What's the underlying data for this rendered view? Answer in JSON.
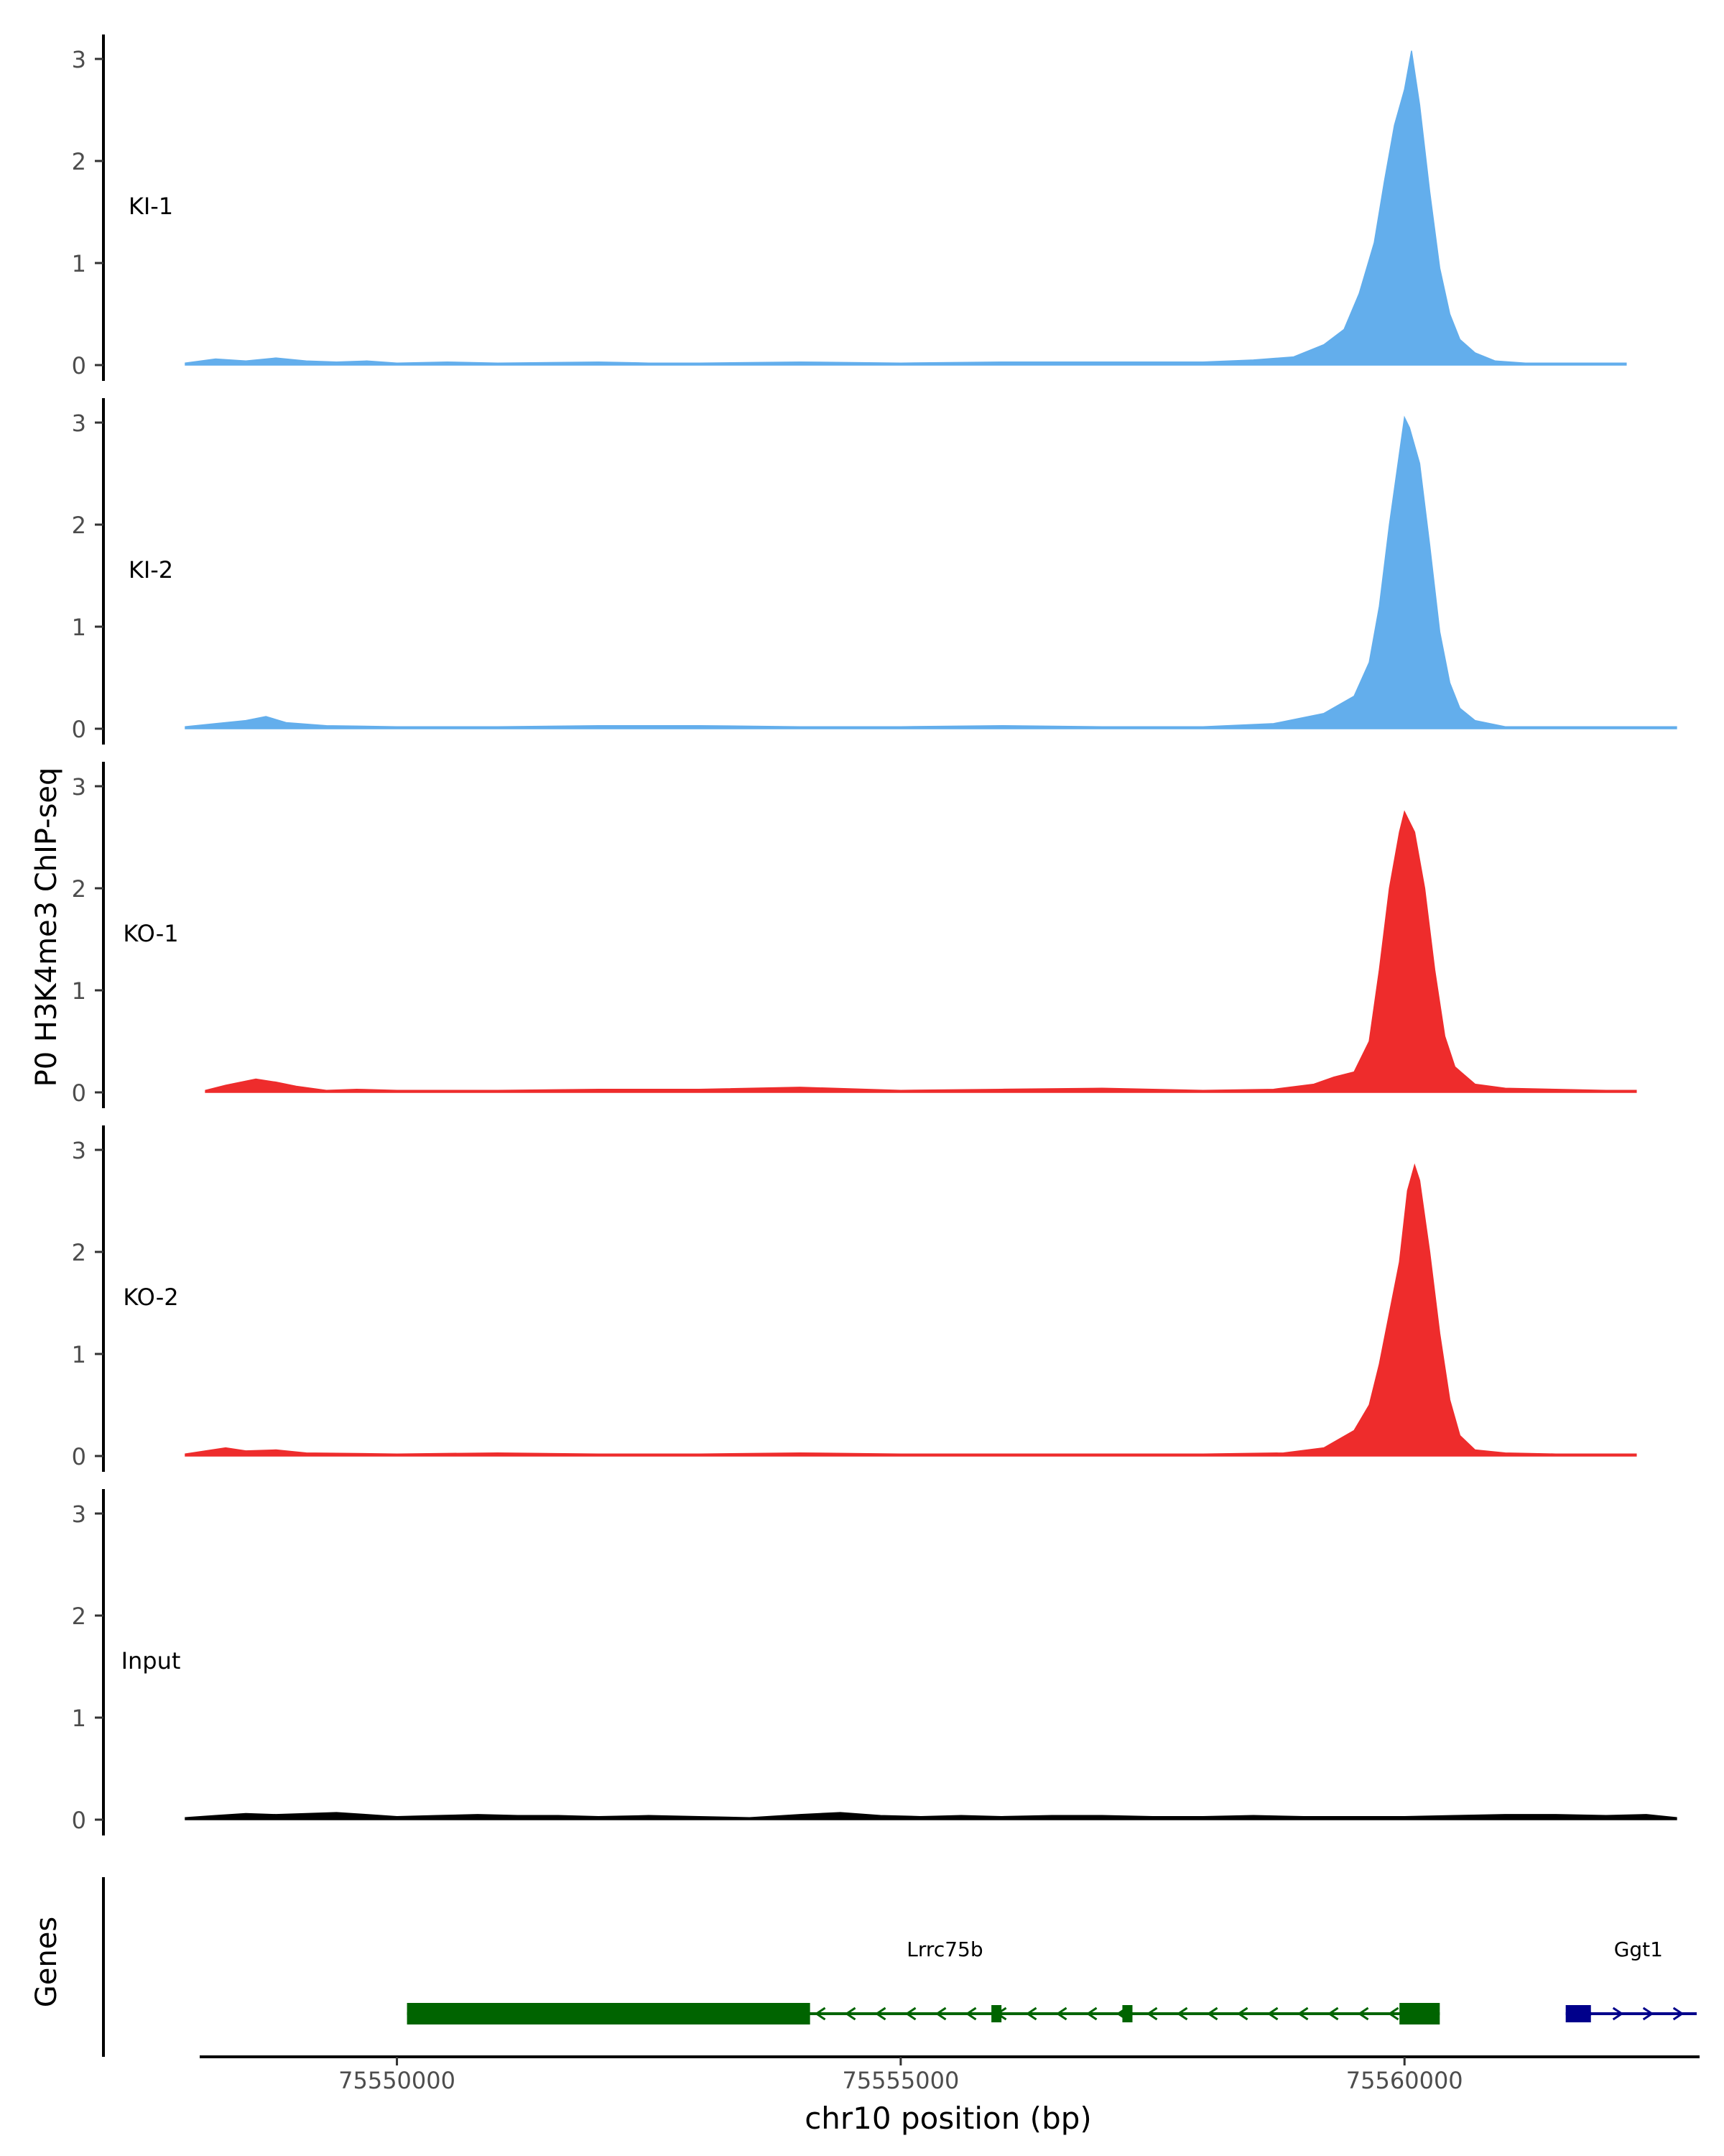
{
  "figure": {
    "ylabel": "P0 H3K4me3 ChIP-seq",
    "xlabel": "chr10 position (bp)",
    "genes_label": "Genes"
  },
  "chart_data": {
    "type": "area",
    "x_unit": "bp",
    "chromosome": "chr10",
    "xlim": [
      75547900,
      75562900
    ],
    "ylim": [
      0,
      3.2
    ],
    "y_ticks": [
      0,
      1,
      2,
      3
    ],
    "x_ticks": [
      75550000,
      75555000,
      75560000
    ],
    "x_tick_labels": [
      "75550000",
      "75555000",
      "75560000"
    ],
    "grid": false,
    "tracks": [
      {
        "label": "KI-1",
        "color": "#63AEEC",
        "baseline": 0.02,
        "points": [
          [
            75547900,
            0.02
          ],
          [
            75548200,
            0.06
          ],
          [
            75548500,
            0.04
          ],
          [
            75548800,
            0.07
          ],
          [
            75549100,
            0.04
          ],
          [
            75549400,
            0.03
          ],
          [
            75549700,
            0.04
          ],
          [
            75550000,
            0.02
          ],
          [
            75550500,
            0.03
          ],
          [
            75551000,
            0.02
          ],
          [
            75552000,
            0.03
          ],
          [
            75552500,
            0.02
          ],
          [
            75553000,
            0.02
          ],
          [
            75554000,
            0.03
          ],
          [
            75555000,
            0.02
          ],
          [
            75556000,
            0.03
          ],
          [
            75557000,
            0.03
          ],
          [
            75558000,
            0.03
          ],
          [
            75558500,
            0.05
          ],
          [
            75558900,
            0.08
          ],
          [
            75559200,
            0.2
          ],
          [
            75559400,
            0.35
          ],
          [
            75559550,
            0.7
          ],
          [
            75559700,
            1.2
          ],
          [
            75559800,
            1.8
          ],
          [
            75559900,
            2.35
          ],
          [
            75560000,
            2.7
          ],
          [
            75560070,
            3.08
          ],
          [
            75560150,
            2.55
          ],
          [
            75560250,
            1.7
          ],
          [
            75560350,
            0.95
          ],
          [
            75560450,
            0.5
          ],
          [
            75560550,
            0.25
          ],
          [
            75560700,
            0.12
          ],
          [
            75560900,
            0.04
          ],
          [
            75561200,
            0.02
          ],
          [
            75561800,
            0.02
          ],
          [
            75562200,
            0.02
          ]
        ]
      },
      {
        "label": "KI-2",
        "color": "#63AEEC",
        "baseline": 0.02,
        "points": [
          [
            75547900,
            0.02
          ],
          [
            75548200,
            0.05
          ],
          [
            75548500,
            0.08
          ],
          [
            75548700,
            0.12
          ],
          [
            75548900,
            0.06
          ],
          [
            75549300,
            0.03
          ],
          [
            75550000,
            0.02
          ],
          [
            75551000,
            0.02
          ],
          [
            75552000,
            0.03
          ],
          [
            75553000,
            0.03
          ],
          [
            75554000,
            0.02
          ],
          [
            75555000,
            0.02
          ],
          [
            75556000,
            0.03
          ],
          [
            75557000,
            0.02
          ],
          [
            75558000,
            0.02
          ],
          [
            75558700,
            0.05
          ],
          [
            75559200,
            0.15
          ],
          [
            75559500,
            0.32
          ],
          [
            75559650,
            0.65
          ],
          [
            75559750,
            1.2
          ],
          [
            75559850,
            2.0
          ],
          [
            75559950,
            2.7
          ],
          [
            75560000,
            3.05
          ],
          [
            75560050,
            2.95
          ],
          [
            75560150,
            2.6
          ],
          [
            75560250,
            1.8
          ],
          [
            75560350,
            0.95
          ],
          [
            75560450,
            0.45
          ],
          [
            75560550,
            0.2
          ],
          [
            75560700,
            0.08
          ],
          [
            75561000,
            0.02
          ],
          [
            75562000,
            0.02
          ],
          [
            75562700,
            0.02
          ]
        ]
      },
      {
        "label": "KO-1",
        "color": "#EE2C2C",
        "baseline": 0.02,
        "points": [
          [
            75548100,
            0.02
          ],
          [
            75548300,
            0.07
          ],
          [
            75548600,
            0.13
          ],
          [
            75548800,
            0.1
          ],
          [
            75549000,
            0.06
          ],
          [
            75549300,
            0.02
          ],
          [
            75549600,
            0.03
          ],
          [
            75550000,
            0.02
          ],
          [
            75551000,
            0.02
          ],
          [
            75552000,
            0.03
          ],
          [
            75553000,
            0.03
          ],
          [
            75554000,
            0.05
          ],
          [
            75555000,
            0.02
          ],
          [
            75556000,
            0.03
          ],
          [
            75557000,
            0.04
          ],
          [
            75558000,
            0.02
          ],
          [
            75558700,
            0.03
          ],
          [
            75559100,
            0.08
          ],
          [
            75559300,
            0.15
          ],
          [
            75559500,
            0.2
          ],
          [
            75559650,
            0.5
          ],
          [
            75559750,
            1.2
          ],
          [
            75559850,
            2.0
          ],
          [
            75559950,
            2.55
          ],
          [
            75560000,
            2.75
          ],
          [
            75560100,
            2.55
          ],
          [
            75560200,
            2.0
          ],
          [
            75560300,
            1.2
          ],
          [
            75560400,
            0.55
          ],
          [
            75560500,
            0.25
          ],
          [
            75560700,
            0.08
          ],
          [
            75561000,
            0.04
          ],
          [
            75561500,
            0.03
          ],
          [
            75562000,
            0.02
          ],
          [
            75562300,
            0.02
          ]
        ]
      },
      {
        "label": "KO-2",
        "color": "#EE2C2C",
        "baseline": 0.02,
        "points": [
          [
            75547900,
            0.02
          ],
          [
            75548100,
            0.05
          ],
          [
            75548300,
            0.08
          ],
          [
            75548500,
            0.05
          ],
          [
            75548800,
            0.06
          ],
          [
            75549100,
            0.03
          ],
          [
            75550000,
            0.02
          ],
          [
            75551000,
            0.03
          ],
          [
            75552000,
            0.02
          ],
          [
            75553000,
            0.02
          ],
          [
            75554000,
            0.03
          ],
          [
            75555000,
            0.02
          ],
          [
            75556000,
            0.02
          ],
          [
            75557000,
            0.02
          ],
          [
            75558000,
            0.02
          ],
          [
            75558800,
            0.03
          ],
          [
            75559200,
            0.08
          ],
          [
            75559500,
            0.25
          ],
          [
            75559650,
            0.5
          ],
          [
            75559750,
            0.9
          ],
          [
            75559850,
            1.4
          ],
          [
            75559950,
            1.9
          ],
          [
            75560030,
            2.6
          ],
          [
            75560100,
            2.85
          ],
          [
            75560150,
            2.7
          ],
          [
            75560250,
            2.0
          ],
          [
            75560350,
            1.2
          ],
          [
            75560450,
            0.55
          ],
          [
            75560550,
            0.2
          ],
          [
            75560700,
            0.06
          ],
          [
            75561000,
            0.03
          ],
          [
            75561500,
            0.02
          ],
          [
            75562300,
            0.02
          ]
        ]
      },
      {
        "label": "Input",
        "color": "#000000",
        "baseline": 0.0,
        "points": [
          [
            75547900,
            0.02
          ],
          [
            75548200,
            0.04
          ],
          [
            75548500,
            0.06
          ],
          [
            75548800,
            0.05
          ],
          [
            75549100,
            0.06
          ],
          [
            75549400,
            0.07
          ],
          [
            75549700,
            0.05
          ],
          [
            75550000,
            0.03
          ],
          [
            75550400,
            0.04
          ],
          [
            75550800,
            0.05
          ],
          [
            75551200,
            0.04
          ],
          [
            75551600,
            0.04
          ],
          [
            75552000,
            0.03
          ],
          [
            75552500,
            0.04
          ],
          [
            75553000,
            0.03
          ],
          [
            75553500,
            0.02
          ],
          [
            75554000,
            0.05
          ],
          [
            75554400,
            0.07
          ],
          [
            75554800,
            0.04
          ],
          [
            75555200,
            0.03
          ],
          [
            75555600,
            0.04
          ],
          [
            75556000,
            0.03
          ],
          [
            75556500,
            0.04
          ],
          [
            75557000,
            0.04
          ],
          [
            75557500,
            0.03
          ],
          [
            75558000,
            0.03
          ],
          [
            75558500,
            0.04
          ],
          [
            75559000,
            0.03
          ],
          [
            75559500,
            0.03
          ],
          [
            75560000,
            0.03
          ],
          [
            75560500,
            0.04
          ],
          [
            75561000,
            0.05
          ],
          [
            75561500,
            0.05
          ],
          [
            75562000,
            0.04
          ],
          [
            75562400,
            0.05
          ],
          [
            75562700,
            0.02
          ]
        ]
      }
    ],
    "genes": [
      {
        "name": "Lrrc75b",
        "color": "#006400",
        "strand": "-",
        "start": 75550100,
        "end": 75560350,
        "exons": [
          [
            75550100,
            75554100,
            "thick"
          ],
          [
            75555900,
            75556000,
            "small"
          ],
          [
            75557200,
            75557300,
            "small"
          ],
          [
            75559950,
            75560350,
            "thick"
          ]
        ]
      },
      {
        "name": "Ggt1",
        "color": "#00008B",
        "strand": "+",
        "start": 75561600,
        "end": 75562900,
        "exons": [
          [
            75561600,
            75561850,
            "small"
          ]
        ]
      }
    ]
  }
}
